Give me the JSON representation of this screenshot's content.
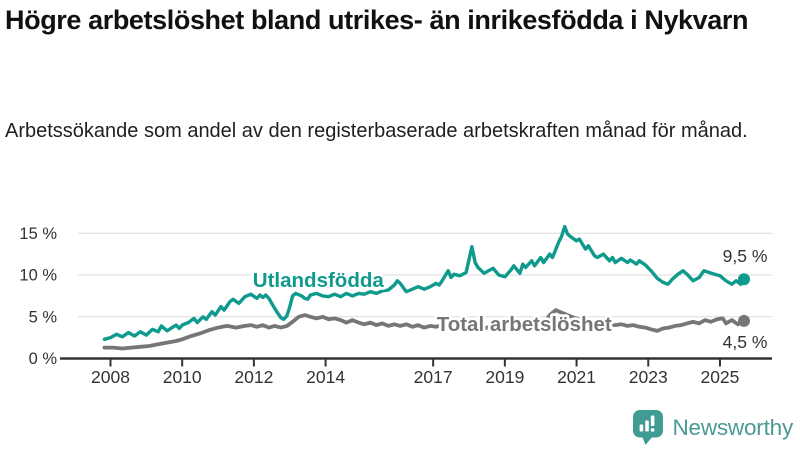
{
  "header": {
    "title": "Högre arbetslöshet bland utrikes- än inrikesfödda i Nykvarn",
    "subtitle": "Arbetssökande som andel av den registerbaserade arbetskraften månad för månad."
  },
  "chart_data": {
    "type": "line",
    "title": "Högre arbetslöshet bland utrikes- än inrikesfödda i Nykvarn",
    "subtitle": "Arbetssökande som andel av den registerbaserade arbetskraften månad för månad.",
    "xlabel": "",
    "ylabel": "",
    "grid": true,
    "legend_position": "inline-labels",
    "ylim": [
      0,
      17.5
    ],
    "xlim": [
      2007.6,
      2026.4
    ],
    "y_ticks": [
      {
        "value": 0,
        "label": "0 %"
      },
      {
        "value": 5,
        "label": "5 %"
      },
      {
        "value": 10,
        "label": "10 %"
      },
      {
        "value": 15,
        "label": "15 %"
      }
    ],
    "x_ticks": [
      {
        "value": 2008,
        "label": "2008"
      },
      {
        "value": 2010,
        "label": "2010"
      },
      {
        "value": 2012,
        "label": "2012"
      },
      {
        "value": 2014,
        "label": "2014"
      },
      {
        "value": 2017,
        "label": "2017"
      },
      {
        "value": 2019,
        "label": "2019"
      },
      {
        "value": 2021,
        "label": "2021"
      },
      {
        "value": 2023,
        "label": "2023"
      },
      {
        "value": 2025,
        "label": "2025"
      }
    ],
    "series": [
      {
        "name": "Utlandsfödda",
        "color": "#0e9a8c",
        "end_value": 9.5,
        "end_label": "9,5 %",
        "end_label_position": "above",
        "label_at": [
          2011.97,
          8.56
        ],
        "points": [
          [
            2007.83,
            2.3
          ],
          [
            2008.0,
            2.5
          ],
          [
            2008.17,
            2.9
          ],
          [
            2008.33,
            2.6
          ],
          [
            2008.5,
            3.1
          ],
          [
            2008.67,
            2.7
          ],
          [
            2008.83,
            3.2
          ],
          [
            2009.0,
            2.8
          ],
          [
            2009.17,
            3.5
          ],
          [
            2009.33,
            3.2
          ],
          [
            2009.42,
            3.9
          ],
          [
            2009.58,
            3.3
          ],
          [
            2009.75,
            3.8
          ],
          [
            2009.83,
            4.0
          ],
          [
            2009.92,
            3.6
          ],
          [
            2010.0,
            4.0
          ],
          [
            2010.17,
            4.3
          ],
          [
            2010.33,
            4.8
          ],
          [
            2010.42,
            4.3
          ],
          [
            2010.58,
            5.0
          ],
          [
            2010.67,
            4.7
          ],
          [
            2010.83,
            5.6
          ],
          [
            2010.92,
            5.2
          ],
          [
            2011.08,
            6.2
          ],
          [
            2011.17,
            5.8
          ],
          [
            2011.33,
            6.8
          ],
          [
            2011.42,
            7.1
          ],
          [
            2011.58,
            6.6
          ],
          [
            2011.75,
            7.4
          ],
          [
            2011.92,
            7.7
          ],
          [
            2012.08,
            7.2
          ],
          [
            2012.17,
            7.6
          ],
          [
            2012.25,
            7.3
          ],
          [
            2012.33,
            7.6
          ],
          [
            2012.42,
            7.2
          ],
          [
            2012.5,
            6.6
          ],
          [
            2012.58,
            6.0
          ],
          [
            2012.67,
            5.4
          ],
          [
            2012.75,
            4.9
          ],
          [
            2012.83,
            4.7
          ],
          [
            2012.92,
            5.1
          ],
          [
            2013.0,
            6.2
          ],
          [
            2013.08,
            7.5
          ],
          [
            2013.17,
            7.8
          ],
          [
            2013.33,
            7.5
          ],
          [
            2013.42,
            7.2
          ],
          [
            2013.5,
            7.1
          ],
          [
            2013.58,
            7.6
          ],
          [
            2013.75,
            7.8
          ],
          [
            2013.92,
            7.5
          ],
          [
            2014.08,
            7.4
          ],
          [
            2014.25,
            7.7
          ],
          [
            2014.42,
            7.4
          ],
          [
            2014.58,
            7.8
          ],
          [
            2014.75,
            7.5
          ],
          [
            2014.92,
            7.8
          ],
          [
            2015.08,
            7.7
          ],
          [
            2015.25,
            8.0
          ],
          [
            2015.42,
            7.8
          ],
          [
            2015.58,
            8.1
          ],
          [
            2015.75,
            8.2
          ],
          [
            2015.92,
            8.8
          ],
          [
            2016.0,
            9.3
          ],
          [
            2016.08,
            9.0
          ],
          [
            2016.25,
            8.0
          ],
          [
            2016.42,
            8.3
          ],
          [
            2016.58,
            8.6
          ],
          [
            2016.75,
            8.3
          ],
          [
            2016.92,
            8.6
          ],
          [
            2017.08,
            9.0
          ],
          [
            2017.17,
            8.8
          ],
          [
            2017.25,
            9.3
          ],
          [
            2017.42,
            10.5
          ],
          [
            2017.5,
            9.7
          ],
          [
            2017.58,
            10.1
          ],
          [
            2017.75,
            9.9
          ],
          [
            2017.92,
            10.3
          ],
          [
            2018.08,
            13.4
          ],
          [
            2018.17,
            11.5
          ],
          [
            2018.25,
            10.9
          ],
          [
            2018.42,
            10.2
          ],
          [
            2018.5,
            10.4
          ],
          [
            2018.67,
            10.8
          ],
          [
            2018.83,
            10.0
          ],
          [
            2019.0,
            9.8
          ],
          [
            2019.17,
            10.6
          ],
          [
            2019.25,
            11.1
          ],
          [
            2019.42,
            10.2
          ],
          [
            2019.5,
            11.3
          ],
          [
            2019.58,
            10.9
          ],
          [
            2019.75,
            11.7
          ],
          [
            2019.83,
            11.1
          ],
          [
            2020.0,
            12.1
          ],
          [
            2020.08,
            11.5
          ],
          [
            2020.25,
            12.5
          ],
          [
            2020.33,
            12.1
          ],
          [
            2020.5,
            13.9
          ],
          [
            2020.58,
            14.6
          ],
          [
            2020.67,
            15.8
          ],
          [
            2020.75,
            14.9
          ],
          [
            2020.83,
            14.6
          ],
          [
            2021.0,
            14.1
          ],
          [
            2021.08,
            14.3
          ],
          [
            2021.25,
            13.1
          ],
          [
            2021.33,
            13.5
          ],
          [
            2021.5,
            12.3
          ],
          [
            2021.58,
            12.1
          ],
          [
            2021.75,
            12.5
          ],
          [
            2021.92,
            11.7
          ],
          [
            2022.0,
            12.1
          ],
          [
            2022.08,
            11.5
          ],
          [
            2022.25,
            12.0
          ],
          [
            2022.42,
            11.5
          ],
          [
            2022.5,
            11.8
          ],
          [
            2022.67,
            11.3
          ],
          [
            2022.75,
            11.7
          ],
          [
            2022.92,
            11.2
          ],
          [
            2023.08,
            10.5
          ],
          [
            2023.25,
            9.6
          ],
          [
            2023.42,
            9.1
          ],
          [
            2023.55,
            8.9
          ],
          [
            2023.67,
            9.5
          ],
          [
            2023.83,
            10.1
          ],
          [
            2023.97,
            10.5
          ],
          [
            2024.08,
            10.1
          ],
          [
            2024.25,
            9.3
          ],
          [
            2024.42,
            9.7
          ],
          [
            2024.55,
            10.5
          ],
          [
            2024.7,
            10.3
          ],
          [
            2024.85,
            10.1
          ],
          [
            2025.0,
            9.9
          ],
          [
            2025.17,
            9.3
          ],
          [
            2025.33,
            8.9
          ],
          [
            2025.45,
            9.3
          ],
          [
            2025.58,
            8.9
          ],
          [
            2025.67,
            9.5
          ]
        ]
      },
      {
        "name": "Total arbetslöshet",
        "color": "#767676",
        "end_value": 4.5,
        "end_label": "4,5 %",
        "end_label_position": "below",
        "label_at": [
          2017.1,
          3.28
        ],
        "points": [
          [
            2007.83,
            1.3
          ],
          [
            2008.08,
            1.3
          ],
          [
            2008.33,
            1.2
          ],
          [
            2008.58,
            1.3
          ],
          [
            2008.83,
            1.4
          ],
          [
            2009.08,
            1.5
          ],
          [
            2009.33,
            1.7
          ],
          [
            2009.58,
            1.9
          ],
          [
            2009.83,
            2.1
          ],
          [
            2010.0,
            2.3
          ],
          [
            2010.25,
            2.7
          ],
          [
            2010.5,
            3.0
          ],
          [
            2010.75,
            3.4
          ],
          [
            2011.0,
            3.7
          ],
          [
            2011.25,
            3.9
          ],
          [
            2011.5,
            3.7
          ],
          [
            2011.75,
            3.9
          ],
          [
            2011.92,
            4.0
          ],
          [
            2012.08,
            3.8
          ],
          [
            2012.25,
            4.0
          ],
          [
            2012.42,
            3.7
          ],
          [
            2012.58,
            3.9
          ],
          [
            2012.75,
            3.7
          ],
          [
            2012.92,
            3.9
          ],
          [
            2013.08,
            4.4
          ],
          [
            2013.25,
            5.0
          ],
          [
            2013.42,
            5.2
          ],
          [
            2013.58,
            5.0
          ],
          [
            2013.75,
            4.8
          ],
          [
            2013.92,
            5.0
          ],
          [
            2014.08,
            4.7
          ],
          [
            2014.25,
            4.8
          ],
          [
            2014.42,
            4.6
          ],
          [
            2014.58,
            4.3
          ],
          [
            2014.75,
            4.6
          ],
          [
            2014.92,
            4.3
          ],
          [
            2015.08,
            4.1
          ],
          [
            2015.25,
            4.3
          ],
          [
            2015.42,
            4.0
          ],
          [
            2015.58,
            4.2
          ],
          [
            2015.75,
            3.9
          ],
          [
            2015.92,
            4.1
          ],
          [
            2016.08,
            3.9
          ],
          [
            2016.25,
            4.1
          ],
          [
            2016.42,
            3.8
          ],
          [
            2016.58,
            4.0
          ],
          [
            2016.75,
            3.7
          ],
          [
            2016.92,
            3.9
          ],
          [
            2017.08,
            3.8
          ],
          [
            2017.25,
            4.0
          ],
          [
            2017.42,
            3.8
          ],
          [
            2017.58,
            3.9
          ],
          [
            2017.75,
            3.7
          ],
          [
            2017.92,
            3.9
          ],
          [
            2018.08,
            3.7
          ],
          [
            2018.25,
            3.8
          ],
          [
            2018.42,
            3.6
          ],
          [
            2018.58,
            3.8
          ],
          [
            2018.75,
            3.6
          ],
          [
            2018.92,
            3.8
          ],
          [
            2019.08,
            3.6
          ],
          [
            2019.25,
            3.7
          ],
          [
            2019.42,
            3.6
          ],
          [
            2019.58,
            3.8
          ],
          [
            2019.75,
            3.7
          ],
          [
            2019.92,
            3.9
          ],
          [
            2020.08,
            4.2
          ],
          [
            2020.25,
            5.2
          ],
          [
            2020.42,
            5.8
          ],
          [
            2020.58,
            5.5
          ],
          [
            2020.75,
            5.2
          ],
          [
            2020.92,
            4.9
          ],
          [
            2021.08,
            4.7
          ],
          [
            2021.25,
            4.5
          ],
          [
            2021.42,
            4.4
          ],
          [
            2021.58,
            4.2
          ],
          [
            2021.75,
            4.3
          ],
          [
            2021.92,
            4.1
          ],
          [
            2022.08,
            4.0
          ],
          [
            2022.25,
            4.1
          ],
          [
            2022.42,
            3.9
          ],
          [
            2022.58,
            4.0
          ],
          [
            2022.75,
            3.8
          ],
          [
            2022.92,
            3.7
          ],
          [
            2023.08,
            3.5
          ],
          [
            2023.25,
            3.3
          ],
          [
            2023.42,
            3.6
          ],
          [
            2023.58,
            3.7
          ],
          [
            2023.75,
            3.9
          ],
          [
            2023.92,
            4.0
          ],
          [
            2024.08,
            4.2
          ],
          [
            2024.25,
            4.4
          ],
          [
            2024.42,
            4.2
          ],
          [
            2024.58,
            4.6
          ],
          [
            2024.75,
            4.4
          ],
          [
            2024.92,
            4.7
          ],
          [
            2025.08,
            4.8
          ],
          [
            2025.17,
            4.2
          ],
          [
            2025.33,
            4.6
          ],
          [
            2025.5,
            4.1
          ],
          [
            2025.67,
            4.5
          ]
        ]
      }
    ],
    "axis_color": "#333333",
    "gridline_color": "#dcdcdc",
    "tick_label_color": "#333333",
    "end_label_color": "#333333"
  },
  "footer": {
    "brand": "Newsworthy",
    "brand_color": "#4a9a93",
    "logo_icon": "bar-chart-speech-bubble-icon",
    "logo_bg_color": "#3f9b93"
  }
}
